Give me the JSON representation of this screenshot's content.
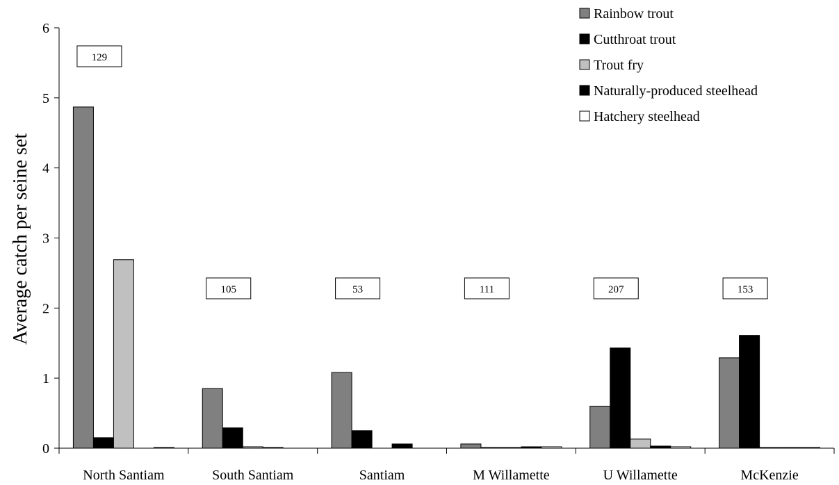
{
  "chart_data": {
    "type": "bar",
    "ylabel": "Average catch per seine set",
    "xlabel": "",
    "ylim": [
      0,
      6
    ],
    "yticks": [
      "0",
      "1",
      "2",
      "3",
      "4",
      "5",
      "6"
    ],
    "categories": [
      "North Santiam",
      "South Santiam",
      "Santiam",
      "M Willamette",
      "U Willamette",
      "McKenzie"
    ],
    "sample_sizes": [
      "129",
      "105",
      "53",
      "111",
      "207",
      "153"
    ],
    "series": [
      {
        "name": "Rainbow trout",
        "color": "#808080",
        "values": [
          4.87,
          0.85,
          1.08,
          0.06,
          0.6,
          1.29
        ]
      },
      {
        "name": "Cutthroat trout",
        "color": "#000000",
        "values": [
          0.15,
          0.29,
          0.25,
          0.01,
          1.43,
          1.61
        ]
      },
      {
        "name": "Trout fry",
        "color": "#c0c0c0",
        "values": [
          2.69,
          0.02,
          0.0,
          0.01,
          0.13,
          0.01
        ]
      },
      {
        "name": "Naturally-produced steelhead",
        "color": "#000000",
        "values": [
          0.0,
          0.01,
          0.06,
          0.02,
          0.03,
          0.01
        ]
      },
      {
        "name": "Hatchery steelhead",
        "color": "#ffffff",
        "values": [
          0.01,
          0.0,
          0.0,
          0.02,
          0.02,
          0.01
        ]
      }
    ],
    "legend_position": "top-right",
    "grid": false
  }
}
